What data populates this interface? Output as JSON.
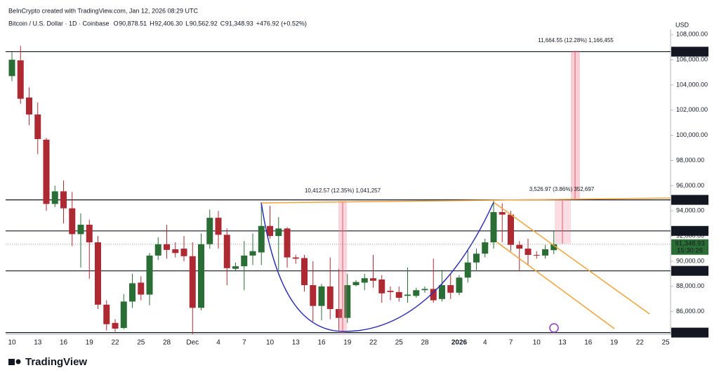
{
  "watermark": "BeInCrypto created with TradingView.com, Jan 12, 2026 08:29 UTC",
  "brand": "TradingView",
  "chart_data": {
    "type": "candlestick",
    "title": "Bitcoin / U.S. Dollar · 1D · Coinbase",
    "ohlc_legend": [
      {
        "label": "O",
        "value": "90,878.51"
      },
      {
        "label": "H",
        "value": "92,406.30"
      },
      {
        "label": "L",
        "value": "90,562.92"
      },
      {
        "label": "C",
        "value": "91,348.93"
      }
    ],
    "change_label": "+476.92 (+0.52%)",
    "currency": "USD",
    "up_color": "#2b6e35",
    "down_color": "#ad2a33",
    "categories": [
      "10",
      null,
      null,
      "13",
      null,
      null,
      "16",
      null,
      null,
      "19",
      null,
      null,
      "22",
      null,
      null,
      "25",
      null,
      null,
      "28",
      null,
      null,
      "Dec",
      null,
      null,
      "4",
      null,
      null,
      "7",
      null,
      null,
      "10",
      null,
      null,
      "13",
      null,
      null,
      "16",
      null,
      null,
      "19",
      null,
      null,
      "22",
      null,
      null,
      "25",
      null,
      null,
      "28",
      null,
      null,
      null,
      "2026",
      null,
      null,
      "4",
      null,
      null,
      "7",
      null,
      null,
      "10",
      null,
      null,
      "13",
      null,
      null,
      "16",
      null,
      null,
      "19",
      null,
      null,
      "22",
      null,
      null,
      "25"
    ],
    "open": [
      104700,
      105950,
      103000,
      101650,
      99650,
      94550,
      95550,
      94200,
      92150,
      92900,
      91500,
      86550,
      85100,
      84700,
      86800,
      88300,
      87350,
      90450,
      91350,
      90950,
      91000,
      90400,
      86300,
      91350,
      93450,
      92100,
      89400,
      89600,
      90450,
      90700,
      92800,
      92000,
      92600,
      90300,
      90250,
      88100,
      86450,
      88000,
      86200,
      85500,
      88100,
      88300,
      88650,
      88550,
      87650,
      87550,
      87250,
      87250,
      87700,
      87800,
      87000,
      88100,
      87500,
      88700,
      89900,
      90600,
      91500,
      93900,
      93700,
      91300,
      91000,
      90500,
      90450,
      90878.51,
      null,
      null,
      null,
      null,
      null,
      null,
      null,
      null,
      null,
      null,
      null,
      null,
      null
    ],
    "high": [
      106600,
      107100,
      103800,
      102600,
      99800,
      96000,
      96400,
      95500,
      93800,
      93300,
      92000,
      86900,
      85400,
      87400,
      89000,
      88800,
      90650,
      91900,
      92900,
      91500,
      92000,
      91500,
      92200,
      94100,
      94000,
      92600,
      89900,
      91600,
      92200,
      94600,
      94400,
      93500,
      92700,
      90500,
      90500,
      90000,
      88200,
      90300,
      89400,
      89000,
      88500,
      89000,
      90500,
      88900,
      88000,
      88000,
      89500,
      87900,
      88000,
      90200,
      89300,
      89000,
      88900,
      90900,
      91000,
      91800,
      94800,
      94600,
      94000,
      91600,
      91800,
      90800,
      91300,
      92406.3,
      null,
      null,
      null,
      null,
      null,
      null,
      null,
      null,
      null,
      null,
      null,
      null,
      null
    ],
    "low": [
      104300,
      102500,
      100800,
      98500,
      94000,
      94300,
      93000,
      91200,
      89500,
      88600,
      86200,
      84500,
      84400,
      84600,
      86300,
      86900,
      86500,
      90100,
      90200,
      90300,
      90000,
      84200,
      86100,
      91000,
      91000,
      88100,
      89200,
      87700,
      89700,
      89700,
      91800,
      89300,
      89500,
      89800,
      87600,
      85200,
      85300,
      85400,
      84500,
      85100,
      88000,
      87700,
      87900,
      86700,
      86900,
      86800,
      86700,
      87100,
      87500,
      86700,
      86800,
      87000,
      87300,
      88300,
      89300,
      90300,
      91000,
      91500,
      90800,
      89200,
      89700,
      90200,
      90200,
      90562.92,
      null,
      null,
      null,
      null,
      null,
      null,
      null,
      null,
      null,
      null,
      null,
      null,
      null
    ],
    "close": [
      106000,
      102900,
      101650,
      99700,
      94550,
      95550,
      94200,
      92150,
      92900,
      91500,
      86550,
      85000,
      84650,
      86800,
      88250,
      87350,
      90450,
      91350,
      90900,
      90650,
      90400,
      86300,
      91350,
      93450,
      92100,
      89450,
      89600,
      90450,
      90800,
      92800,
      92000,
      92600,
      90300,
      90200,
      88100,
      86450,
      88000,
      86200,
      85500,
      88100,
      88350,
      88650,
      88450,
      87450,
      87550,
      87100,
      87350,
      87700,
      87800,
      86900,
      88100,
      87500,
      88700,
      89900,
      90600,
      91500,
      93900,
      93700,
      91300,
      91000,
      90500,
      90450,
      90950,
      91348.93,
      null,
      null,
      null,
      null,
      null,
      null,
      null,
      null,
      null,
      null,
      null,
      null,
      null
    ],
    "ylim": [
      84200,
      108400
    ],
    "yticks": [
      {
        "value": 86000,
        "label": "86,000.00"
      },
      {
        "value": 88000,
        "label": "88,000.00"
      },
      {
        "value": 90000,
        "label": "90,000.00"
      },
      {
        "value": 92000,
        "label": "92,000.00"
      },
      {
        "value": 94000,
        "label": "94,000.00"
      },
      {
        "value": 96000,
        "label": "96,000.00"
      },
      {
        "value": 98000,
        "label": "98,000.00"
      },
      {
        "value": 100000,
        "label": "100,000.00"
      },
      {
        "value": 102000,
        "label": "102,000.00"
      },
      {
        "value": 104000,
        "label": "104,000.00"
      },
      {
        "value": 106000,
        "label": "106,000.00"
      },
      {
        "value": 108000,
        "label": "108,000.00"
      }
    ],
    "levels": [
      {
        "value": 106639.5,
        "label": "106,639.50"
      },
      {
        "value": 94871.71,
        "label": "94,871.71"
      },
      {
        "value": 92408.34,
        "label": "92,408.34"
      },
      {
        "value": 89236.29,
        "label": "89,236.29"
      },
      {
        "value": 84333.93,
        "label": "84,333.93"
      }
    ],
    "last_price": {
      "value": 91348.93,
      "label": "91,348.93",
      "countdown": "15:30:26",
      "color": "#2b6e35"
    },
    "measurements": [
      "10,412.57 (12.35%) 1,041,257",
      "3,526.97 (3.86%) 352,697",
      "11,664.55 (12.28%) 1,166,455"
    ]
  }
}
